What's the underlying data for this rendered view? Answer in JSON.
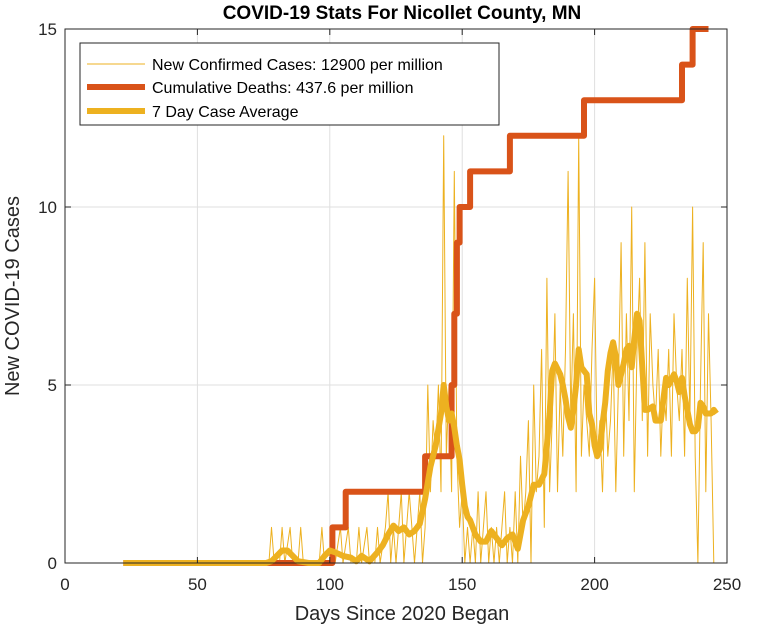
{
  "chart_data": {
    "type": "line",
    "title": "COVID-19 Stats For Nicollet County, MN",
    "xlabel": "Days Since 2020 Began",
    "ylabel": "New COVID-19 Cases",
    "xlim": [
      0,
      250
    ],
    "ylim": [
      0,
      15
    ],
    "xticks": [
      0,
      50,
      100,
      150,
      200,
      250
    ],
    "yticks": [
      0,
      5,
      10,
      15
    ],
    "grid": true,
    "legend_position": "top-left",
    "series": [
      {
        "name": "New Confirmed Cases: 12900 per million",
        "color": "#EDB120",
        "line_width": "thin",
        "points": [
          [
            22,
            0
          ],
          [
            77,
            0
          ],
          [
            78,
            1
          ],
          [
            79,
            0
          ],
          [
            81,
            0
          ],
          [
            82,
            1
          ],
          [
            83,
            0
          ],
          [
            85,
            1
          ],
          [
            86,
            0
          ],
          [
            88,
            0
          ],
          [
            89,
            1
          ],
          [
            90,
            0
          ],
          [
            96,
            0
          ],
          [
            97,
            1
          ],
          [
            98,
            0
          ],
          [
            100,
            0
          ],
          [
            101,
            1
          ],
          [
            102,
            0
          ],
          [
            104,
            1
          ],
          [
            105,
            0
          ],
          [
            107,
            1
          ],
          [
            108,
            0
          ],
          [
            110,
            0
          ],
          [
            111,
            1
          ],
          [
            112,
            0
          ],
          [
            114,
            1
          ],
          [
            115,
            0
          ],
          [
            117,
            0
          ],
          [
            118,
            1
          ],
          [
            119,
            0
          ],
          [
            121,
            1
          ],
          [
            122,
            2
          ],
          [
            123,
            0
          ],
          [
            124,
            1
          ],
          [
            125,
            0
          ],
          [
            127,
            2
          ],
          [
            128,
            0
          ],
          [
            129,
            1
          ],
          [
            130,
            2
          ],
          [
            131,
            1
          ],
          [
            132,
            0
          ],
          [
            133,
            1
          ],
          [
            134,
            2
          ],
          [
            135,
            0
          ],
          [
            136,
            1
          ],
          [
            137,
            5
          ],
          [
            138,
            2
          ],
          [
            139,
            4
          ],
          [
            140,
            3
          ],
          [
            141,
            5
          ],
          [
            142,
            2
          ],
          [
            143,
            12
          ],
          [
            144,
            3
          ],
          [
            145,
            5
          ],
          [
            146,
            2
          ],
          [
            147,
            11
          ],
          [
            148,
            3
          ],
          [
            149,
            1
          ],
          [
            150,
            2
          ],
          [
            151,
            0
          ],
          [
            152,
            1
          ],
          [
            153,
            0
          ],
          [
            154,
            1
          ],
          [
            155,
            0
          ],
          [
            156,
            2
          ],
          [
            157,
            0
          ],
          [
            158,
            1
          ],
          [
            159,
            2
          ],
          [
            160,
            0
          ],
          [
            161,
            1
          ],
          [
            162,
            0
          ],
          [
            163,
            1
          ],
          [
            164,
            0
          ],
          [
            165,
            1
          ],
          [
            166,
            2
          ],
          [
            167,
            0
          ],
          [
            168,
            1
          ],
          [
            169,
            0
          ],
          [
            170,
            2
          ],
          [
            171,
            0
          ],
          [
            172,
            3
          ],
          [
            173,
            1
          ],
          [
            174,
            2
          ],
          [
            175,
            4
          ],
          [
            176,
            0
          ],
          [
            177,
            5
          ],
          [
            178,
            2
          ],
          [
            179,
            3
          ],
          [
            180,
            6
          ],
          [
            181,
            1
          ],
          [
            182,
            8
          ],
          [
            183,
            2
          ],
          [
            184,
            4
          ],
          [
            185,
            7
          ],
          [
            186,
            2
          ],
          [
            187,
            5
          ],
          [
            188,
            3
          ],
          [
            189,
            6
          ],
          [
            190,
            11
          ],
          [
            191,
            4
          ],
          [
            192,
            7
          ],
          [
            193,
            2
          ],
          [
            194,
            12
          ],
          [
            195,
            3
          ],
          [
            196,
            5
          ],
          [
            197,
            4
          ],
          [
            198,
            3
          ],
          [
            199,
            6
          ],
          [
            200,
            8
          ],
          [
            201,
            3
          ],
          [
            202,
            4
          ],
          [
            203,
            2
          ],
          [
            204,
            5
          ],
          [
            205,
            3
          ],
          [
            206,
            4
          ],
          [
            207,
            6
          ],
          [
            208,
            2
          ],
          [
            209,
            5
          ],
          [
            210,
            9
          ],
          [
            211,
            3
          ],
          [
            212,
            7
          ],
          [
            213,
            4
          ],
          [
            214,
            10
          ],
          [
            215,
            2
          ],
          [
            216,
            6
          ],
          [
            217,
            8
          ],
          [
            218,
            4
          ],
          [
            219,
            9
          ],
          [
            220,
            3
          ],
          [
            221,
            7
          ],
          [
            222,
            5
          ],
          [
            223,
            4
          ],
          [
            224,
            6
          ],
          [
            225,
            3
          ],
          [
            226,
            5
          ],
          [
            227,
            4
          ],
          [
            228,
            6
          ],
          [
            229,
            3
          ],
          [
            230,
            7
          ],
          [
            231,
            5
          ],
          [
            232,
            4
          ],
          [
            233,
            6
          ],
          [
            234,
            3
          ],
          [
            235,
            8
          ],
          [
            236,
            4
          ],
          [
            237,
            10
          ],
          [
            238,
            3
          ],
          [
            239,
            0
          ],
          [
            240,
            5
          ],
          [
            241,
            9
          ],
          [
            242,
            2
          ],
          [
            243,
            7
          ],
          [
            244,
            4
          ],
          [
            245,
            0
          ]
        ]
      },
      {
        "name": "Cumulative Deaths: 437.6 per million",
        "color": "#D95319",
        "line_width": "thick",
        "points": [
          [
            22,
            0
          ],
          [
            101,
            0
          ],
          [
            101,
            1
          ],
          [
            106,
            1
          ],
          [
            106,
            2
          ],
          [
            136,
            2
          ],
          [
            136,
            3
          ],
          [
            146,
            3
          ],
          [
            146,
            5
          ],
          [
            147,
            5
          ],
          [
            147,
            7
          ],
          [
            148,
            7
          ],
          [
            148,
            9
          ],
          [
            149,
            9
          ],
          [
            149,
            10
          ],
          [
            153,
            10
          ],
          [
            153,
            11
          ],
          [
            168,
            11
          ],
          [
            168,
            12
          ],
          [
            196,
            12
          ],
          [
            196,
            13
          ],
          [
            233,
            13
          ],
          [
            233,
            14
          ],
          [
            237,
            14
          ],
          [
            237,
            15
          ],
          [
            243,
            15
          ]
        ]
      },
      {
        "name": "7 Day Case Average",
        "color": "#EDB120",
        "line_width": "thick",
        "points": [
          [
            22,
            0
          ],
          [
            76,
            0
          ],
          [
            78,
            0.05
          ],
          [
            80,
            0.2
          ],
          [
            82,
            0.35
          ],
          [
            84,
            0.35
          ],
          [
            86,
            0.2
          ],
          [
            88,
            0.05
          ],
          [
            92,
            0
          ],
          [
            96,
            0
          ],
          [
            98,
            0.2
          ],
          [
            100,
            0.35
          ],
          [
            102,
            0.3
          ],
          [
            105,
            0.2
          ],
          [
            108,
            0.15
          ],
          [
            110,
            0.05
          ],
          [
            112,
            0.2
          ],
          [
            115,
            0.05
          ],
          [
            118,
            0.3
          ],
          [
            120,
            0.5
          ],
          [
            122,
            0.8
          ],
          [
            124,
            1.05
          ],
          [
            126,
            0.9
          ],
          [
            128,
            1.0
          ],
          [
            130,
            0.8
          ],
          [
            132,
            0.9
          ],
          [
            134,
            1.1
          ],
          [
            136,
            1.8
          ],
          [
            138,
            2.7
          ],
          [
            140,
            3.3
          ],
          [
            142,
            4.2
          ],
          [
            143,
            5.0
          ],
          [
            144,
            4.4
          ],
          [
            145,
            4.0
          ],
          [
            146,
            4.2
          ],
          [
            147,
            3.8
          ],
          [
            148,
            3.3
          ],
          [
            149,
            2.9
          ],
          [
            150,
            2.2
          ],
          [
            151,
            1.6
          ],
          [
            152,
            1.3
          ],
          [
            153,
            1.2
          ],
          [
            155,
            0.8
          ],
          [
            157,
            0.6
          ],
          [
            159,
            0.6
          ],
          [
            161,
            0.9
          ],
          [
            163,
            0.7
          ],
          [
            165,
            0.5
          ],
          [
            167,
            0.7
          ],
          [
            169,
            0.8
          ],
          [
            170,
            0.6
          ],
          [
            171,
            0.4
          ],
          [
            173,
            1.2
          ],
          [
            175,
            1.6
          ],
          [
            177,
            2.2
          ],
          [
            179,
            2.2
          ],
          [
            181,
            2.5
          ],
          [
            182,
            3.3
          ],
          [
            183,
            4.2
          ],
          [
            184,
            5.4
          ],
          [
            185,
            5.6
          ],
          [
            187,
            5.3
          ],
          [
            188,
            5.0
          ],
          [
            189,
            4.6
          ],
          [
            190,
            4.1
          ],
          [
            191,
            3.8
          ],
          [
            192,
            4.3
          ],
          [
            193,
            5.0
          ],
          [
            194,
            6.0
          ],
          [
            195,
            5.5
          ],
          [
            196,
            5.4
          ],
          [
            197,
            5.3
          ],
          [
            198,
            4.2
          ],
          [
            199,
            3.9
          ],
          [
            200,
            3.3
          ],
          [
            201,
            3.0
          ],
          [
            202,
            3.2
          ],
          [
            203,
            3.9
          ],
          [
            204,
            4.5
          ],
          [
            205,
            5.4
          ],
          [
            206,
            5.9
          ],
          [
            207,
            6.2
          ],
          [
            208,
            5.8
          ],
          [
            209,
            5.0
          ],
          [
            210,
            5.3
          ],
          [
            211,
            5.6
          ],
          [
            212,
            6.0
          ],
          [
            213,
            6.1
          ],
          [
            214,
            5.5
          ],
          [
            215,
            6.3
          ],
          [
            216,
            7.0
          ],
          [
            217,
            6.8
          ],
          [
            218,
            5.5
          ],
          [
            219,
            4.3
          ],
          [
            220,
            4.3
          ],
          [
            222,
            4.4
          ],
          [
            223,
            4.0
          ],
          [
            225,
            4.0
          ],
          [
            226,
            4.6
          ],
          [
            227,
            5.2
          ],
          [
            228,
            5.0
          ],
          [
            230,
            5.3
          ],
          [
            231,
            5.1
          ],
          [
            232,
            4.8
          ],
          [
            233,
            5.2
          ],
          [
            234,
            4.7
          ],
          [
            235,
            4.3
          ],
          [
            236,
            3.9
          ],
          [
            237,
            3.7
          ],
          [
            238,
            3.7
          ],
          [
            239,
            3.8
          ],
          [
            240,
            4.5
          ],
          [
            241,
            4.4
          ],
          [
            242,
            4.2
          ],
          [
            244,
            4.2
          ],
          [
            245,
            4.3
          ],
          [
            246,
            4.2
          ]
        ]
      }
    ]
  }
}
